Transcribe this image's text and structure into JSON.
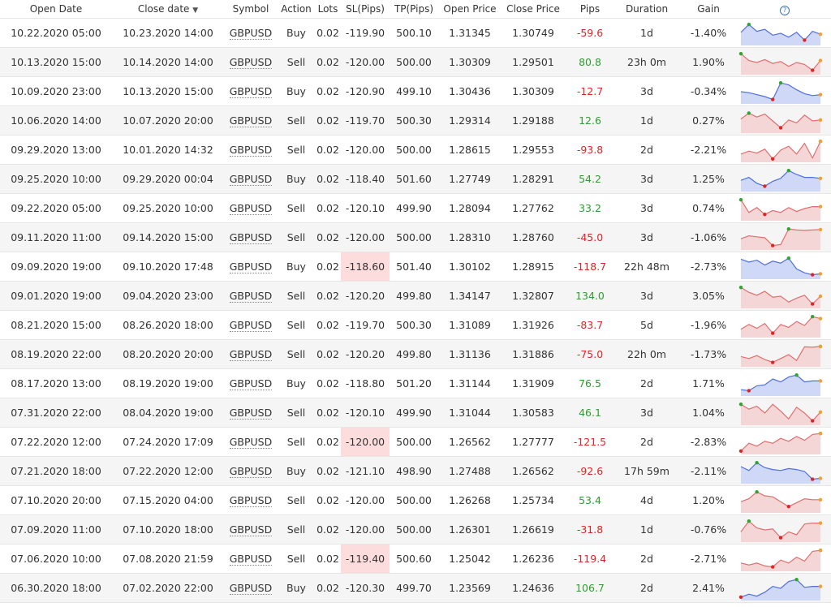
{
  "headers": {
    "open_date": "Open Date",
    "close_date": "Close date",
    "symbol": "Symbol",
    "action": "Action",
    "lots": "Lots",
    "sl": "SL(Pips)",
    "tp": "TP(Pips)",
    "open_price": "Open Price",
    "close_price": "Close Price",
    "pips": "Pips",
    "duration": "Duration",
    "gain": "Gain",
    "help": "?"
  },
  "colors": {
    "positive": "#2e9e2e",
    "negative": "#e02424",
    "sl_highlight": "#fcdcdc",
    "buy_spark_line": "#4f6fe0",
    "buy_spark_fill": "#cfd8f7",
    "sell_spark_line": "#e06f6f",
    "sell_spark_fill": "#f4d6d6",
    "spark_high_marker": "#2ea52e",
    "spark_low_marker": "#e02424",
    "spark_last_marker": "#f0a030"
  },
  "icons": {
    "sort": "sort-desc-icon",
    "help": "help-icon"
  },
  "trades": [
    {
      "open": "10.22.2020 05:00",
      "close": "10.23.2020 14:00",
      "symbol": "GBPUSD",
      "action": "Buy",
      "lots": "0.02",
      "sl": "-119.90",
      "tp": "500.10",
      "open_price": "1.31345",
      "close_price": "1.30749",
      "pips": "-59.6",
      "duration": "1d",
      "gain": "-1.40%",
      "spark": [
        0.55,
        0.95,
        0.6,
        0.7,
        0.4,
        0.5,
        0.3,
        0.55,
        0.15,
        0.6,
        0.45
      ]
    },
    {
      "open": "10.13.2020 15:00",
      "close": "10.14.2020 14:00",
      "symbol": "GBPUSD",
      "action": "Sell",
      "lots": "0.02",
      "sl": "-120.00",
      "tp": "500.00",
      "open_price": "1.30309",
      "close_price": "1.29501",
      "pips": "80.8",
      "duration": "23h 0m",
      "gain": "1.90%",
      "spark": [
        0.95,
        0.6,
        0.5,
        0.65,
        0.45,
        0.55,
        0.3,
        0.5,
        0.4,
        0.1,
        0.6
      ]
    },
    {
      "open": "10.09.2020 23:00",
      "close": "10.13.2020 15:00",
      "symbol": "GBPUSD",
      "action": "Buy",
      "lots": "0.02",
      "sl": "-120.90",
      "tp": "499.10",
      "open_price": "1.30436",
      "close_price": "1.30309",
      "pips": "-12.7",
      "duration": "3d",
      "gain": "-0.34%",
      "spark": [
        0.5,
        0.45,
        0.35,
        0.25,
        0.1,
        0.95,
        0.85,
        0.6,
        0.4,
        0.3,
        0.35
      ]
    },
    {
      "open": "10.06.2020 14:00",
      "close": "10.07.2020 20:00",
      "symbol": "GBPUSD",
      "action": "Sell",
      "lots": "0.02",
      "sl": "-119.70",
      "tp": "500.30",
      "open_price": "1.29314",
      "close_price": "1.29188",
      "pips": "12.6",
      "duration": "1d",
      "gain": "0.27%",
      "spark": [
        0.6,
        0.9,
        0.7,
        0.85,
        0.5,
        0.15,
        0.55,
        0.4,
        0.8,
        0.5,
        0.55
      ]
    },
    {
      "open": "09.29.2020 13:00",
      "close": "10.01.2020 14:32",
      "symbol": "GBPUSD",
      "action": "Sell",
      "lots": "0.02",
      "sl": "-120.00",
      "tp": "500.00",
      "open_price": "1.28615",
      "close_price": "1.29553",
      "pips": "-93.8",
      "duration": "2d",
      "gain": "-2.21%",
      "spark": [
        0.3,
        0.45,
        0.35,
        0.55,
        0.05,
        0.5,
        0.7,
        0.3,
        0.85,
        0.1,
        0.95
      ]
    },
    {
      "open": "09.25.2020 10:00",
      "close": "09.29.2020 00:04",
      "symbol": "GBPUSD",
      "action": "Buy",
      "lots": "0.02",
      "sl": "-118.40",
      "tp": "501.60",
      "open_price": "1.27749",
      "close_price": "1.28291",
      "pips": "54.2",
      "duration": "3d",
      "gain": "1.25%",
      "spark": [
        0.45,
        0.6,
        0.3,
        0.15,
        0.4,
        0.55,
        0.95,
        0.75,
        0.6,
        0.6,
        0.55
      ]
    },
    {
      "open": "09.22.2020 05:00",
      "close": "09.25.2020 10:00",
      "symbol": "GBPUSD",
      "action": "Sell",
      "lots": "0.02",
      "sl": "-120.10",
      "tp": "499.90",
      "open_price": "1.28094",
      "close_price": "1.27762",
      "pips": "33.2",
      "duration": "3d",
      "gain": "0.74%",
      "spark": [
        0.95,
        0.3,
        0.55,
        0.2,
        0.4,
        0.3,
        0.55,
        0.35,
        0.5,
        0.6,
        0.6
      ]
    },
    {
      "open": "09.11.2020 11:00",
      "close": "09.14.2020 15:00",
      "symbol": "GBPUSD",
      "action": "Sell",
      "lots": "0.02",
      "sl": "-120.00",
      "tp": "500.00",
      "open_price": "1.28310",
      "close_price": "1.28760",
      "pips": "-45.0",
      "duration": "3d",
      "gain": "-1.06%",
      "spark": [
        0.45,
        0.6,
        0.55,
        0.5,
        0.1,
        0.15,
        0.95,
        0.9,
        0.88,
        0.9,
        0.92
      ]
    },
    {
      "open": "09.09.2020 19:00",
      "close": "09.10.2020 17:48",
      "symbol": "GBPUSD",
      "action": "Buy",
      "lots": "0.02",
      "sl": "-118.60",
      "tp": "501.40",
      "open_price": "1.30102",
      "close_price": "1.28915",
      "pips": "-118.7",
      "duration": "22h 48m",
      "gain": "-2.73%",
      "spark": [
        0.9,
        0.75,
        0.85,
        0.6,
        0.8,
        0.7,
        0.95,
        0.4,
        0.2,
        0.1,
        0.15
      ]
    },
    {
      "open": "09.01.2020 19:00",
      "close": "09.04.2020 23:00",
      "symbol": "GBPUSD",
      "action": "Sell",
      "lots": "0.02",
      "sl": "-120.20",
      "tp": "499.80",
      "open_price": "1.34147",
      "close_price": "1.32807",
      "pips": "134.0",
      "duration": "3d",
      "gain": "3.05%",
      "spark": [
        0.95,
        0.7,
        0.55,
        0.75,
        0.45,
        0.5,
        0.2,
        0.4,
        0.55,
        0.1,
        0.5
      ]
    },
    {
      "open": "08.21.2020 15:00",
      "close": "08.26.2020 18:00",
      "symbol": "GBPUSD",
      "action": "Sell",
      "lots": "0.02",
      "sl": "-119.70",
      "tp": "500.30",
      "open_price": "1.31089",
      "close_price": "1.31926",
      "pips": "-83.7",
      "duration": "5d",
      "gain": "-1.96%",
      "spark": [
        0.3,
        0.55,
        0.35,
        0.6,
        0.1,
        0.55,
        0.4,
        0.7,
        0.5,
        0.95,
        0.85
      ]
    },
    {
      "open": "08.19.2020 22:00",
      "close": "08.20.2020 20:00",
      "symbol": "GBPUSD",
      "action": "Sell",
      "lots": "0.02",
      "sl": "-120.20",
      "tp": "499.80",
      "open_price": "1.31136",
      "close_price": "1.31886",
      "pips": "-75.0",
      "duration": "22h 0m",
      "gain": "-1.73%",
      "spark": [
        0.4,
        0.3,
        0.45,
        0.25,
        0.1,
        0.3,
        0.5,
        0.2,
        0.9,
        0.88,
        0.92
      ]
    },
    {
      "open": "08.17.2020 13:00",
      "close": "08.19.2020 19:00",
      "symbol": "GBPUSD",
      "action": "Buy",
      "lots": "0.02",
      "sl": "-118.80",
      "tp": "501.20",
      "open_price": "1.31144",
      "close_price": "1.31909",
      "pips": "76.5",
      "duration": "2d",
      "gain": "1.71%",
      "spark": [
        0.2,
        0.15,
        0.4,
        0.45,
        0.75,
        0.6,
        0.85,
        0.95,
        0.6,
        0.65,
        0.65
      ]
    },
    {
      "open": "07.31.2020 22:00",
      "close": "08.04.2020 19:00",
      "symbol": "GBPUSD",
      "action": "Sell",
      "lots": "0.02",
      "sl": "-120.10",
      "tp": "499.90",
      "open_price": "1.31044",
      "close_price": "1.30583",
      "pips": "46.1",
      "duration": "3d",
      "gain": "1.04%",
      "spark": [
        0.95,
        0.7,
        0.85,
        0.5,
        0.95,
        0.6,
        0.2,
        0.8,
        0.5,
        0.1,
        0.55
      ]
    },
    {
      "open": "07.22.2020 12:00",
      "close": "07.24.2020 17:09",
      "symbol": "GBPUSD",
      "action": "Sell",
      "lots": "0.02",
      "sl": "-120.00",
      "tp": "500.00",
      "open_price": "1.26562",
      "close_price": "1.27777",
      "pips": "-121.5",
      "duration": "2d",
      "gain": "-2.83%",
      "spark": [
        0.05,
        0.45,
        0.3,
        0.55,
        0.45,
        0.7,
        0.55,
        0.8,
        0.6,
        0.9,
        0.95
      ]
    },
    {
      "open": "07.21.2020 18:00",
      "close": "07.22.2020 12:00",
      "symbol": "GBPUSD",
      "action": "Buy",
      "lots": "0.02",
      "sl": "-121.10",
      "tp": "498.90",
      "open_price": "1.27488",
      "close_price": "1.26562",
      "pips": "-92.6",
      "duration": "17h 59m",
      "gain": "-2.11%",
      "spark": [
        0.75,
        0.55,
        0.95,
        0.7,
        0.6,
        0.55,
        0.65,
        0.6,
        0.5,
        0.1,
        0.15
      ]
    },
    {
      "open": "07.10.2020 20:00",
      "close": "07.15.2020 04:00",
      "symbol": "GBPUSD",
      "action": "Sell",
      "lots": "0.02",
      "sl": "-120.00",
      "tp": "500.00",
      "open_price": "1.26268",
      "close_price": "1.25734",
      "pips": "53.4",
      "duration": "4d",
      "gain": "1.20%",
      "spark": [
        0.45,
        0.6,
        0.95,
        0.75,
        0.7,
        0.45,
        0.2,
        0.4,
        0.6,
        0.55,
        0.55
      ]
    },
    {
      "open": "07.09.2020 11:00",
      "close": "07.10.2020 18:00",
      "symbol": "GBPUSD",
      "action": "Sell",
      "lots": "0.02",
      "sl": "-120.00",
      "tp": "500.00",
      "open_price": "1.26301",
      "close_price": "1.26619",
      "pips": "-31.8",
      "duration": "1d",
      "gain": "-0.76%",
      "spark": [
        0.4,
        0.95,
        0.6,
        0.5,
        0.55,
        0.1,
        0.4,
        0.25,
        0.8,
        0.85,
        0.85
      ]
    },
    {
      "open": "07.06.2020 10:00",
      "close": "07.08.2020 21:59",
      "symbol": "GBPUSD",
      "action": "Sell",
      "lots": "0.02",
      "sl": "-119.40",
      "tp": "500.60",
      "open_price": "1.25042",
      "close_price": "1.26236",
      "pips": "-119.4",
      "duration": "2d",
      "gain": "-2.71%",
      "spark": [
        0.3,
        0.2,
        0.3,
        0.15,
        0.1,
        0.45,
        0.3,
        0.6,
        0.4,
        0.9,
        0.95
      ]
    },
    {
      "open": "06.30.2020 18:00",
      "close": "07.02.2020 22:00",
      "symbol": "GBPUSD",
      "action": "Buy",
      "lots": "0.02",
      "sl": "-120.30",
      "tp": "499.70",
      "open_price": "1.23569",
      "close_price": "1.24636",
      "pips": "106.7",
      "duration": "2d",
      "gain": "2.41%",
      "spark": [
        0.05,
        0.2,
        0.1,
        0.3,
        0.6,
        0.5,
        0.85,
        0.95,
        0.55,
        0.6,
        0.6
      ]
    }
  ]
}
